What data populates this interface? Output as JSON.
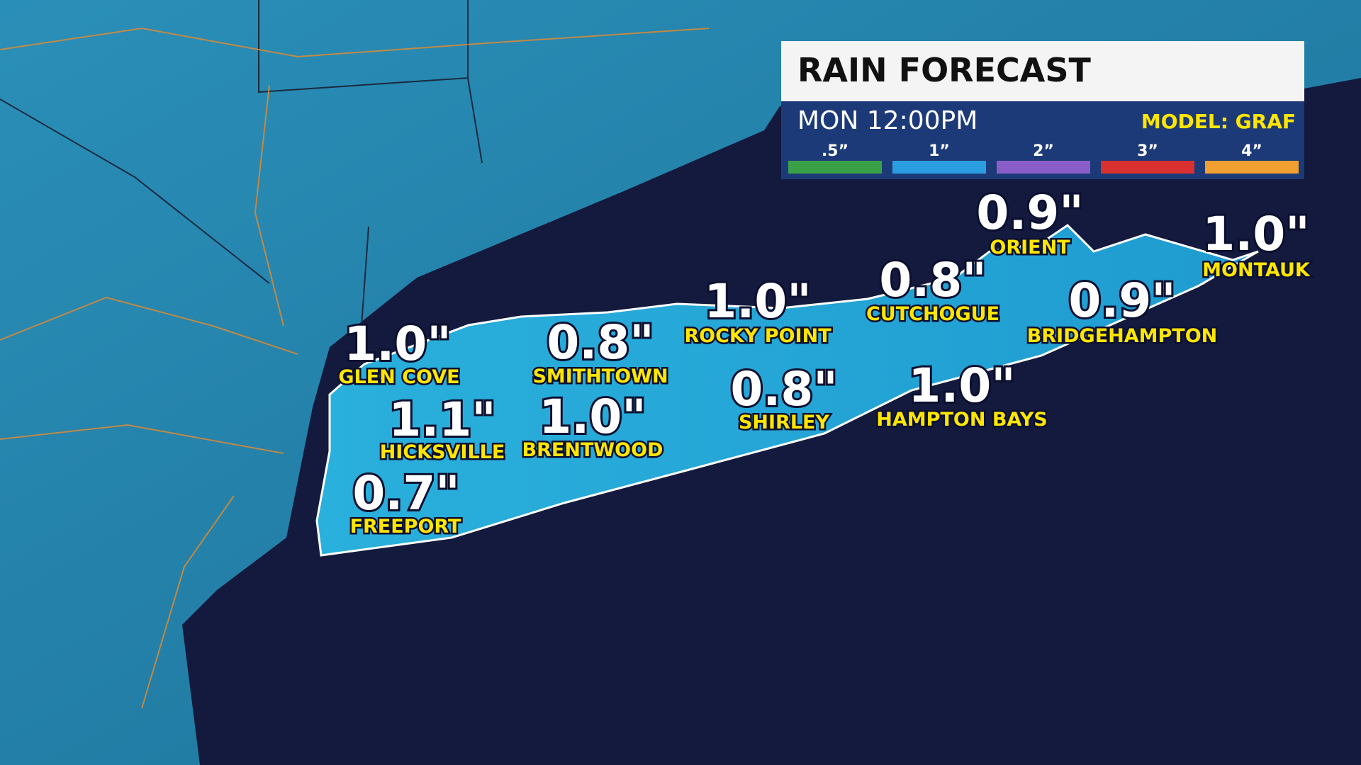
{
  "header": {
    "title": "RAIN FORECAST",
    "time": "MON 12:00PM",
    "model": "MODEL: GRAF"
  },
  "legend": [
    {
      "label": ".5”",
      "color": "#3aa048"
    },
    {
      "label": "1”",
      "color": "#2a9de0"
    },
    {
      "label": "2”",
      "color": "#8a5ec8"
    },
    {
      "label": "3”",
      "color": "#d93030"
    },
    {
      "label": "4”",
      "color": "#f0a030"
    }
  ],
  "locations": [
    {
      "amount": "1.0\"",
      "name": "GLEN COVE"
    },
    {
      "amount": "1.1\"",
      "name": "HICKSVILLE"
    },
    {
      "amount": "0.7\"",
      "name": "FREEPORT"
    },
    {
      "amount": "0.8\"",
      "name": "SMITHTOWN"
    },
    {
      "amount": "1.0\"",
      "name": "BRENTWOOD"
    },
    {
      "amount": "1.0\"",
      "name": "ROCKY POINT"
    },
    {
      "amount": "0.8\"",
      "name": "SHIRLEY"
    },
    {
      "amount": "0.8\"",
      "name": "CUTCHOGUE"
    },
    {
      "amount": "1.0\"",
      "name": "HAMPTON BAYS"
    },
    {
      "amount": "0.9\"",
      "name": "ORIENT"
    },
    {
      "amount": "0.9\"",
      "name": "BRIDGEHAMPTON"
    },
    {
      "amount": "1.0\"",
      "name": "MONTAUK"
    }
  ]
}
